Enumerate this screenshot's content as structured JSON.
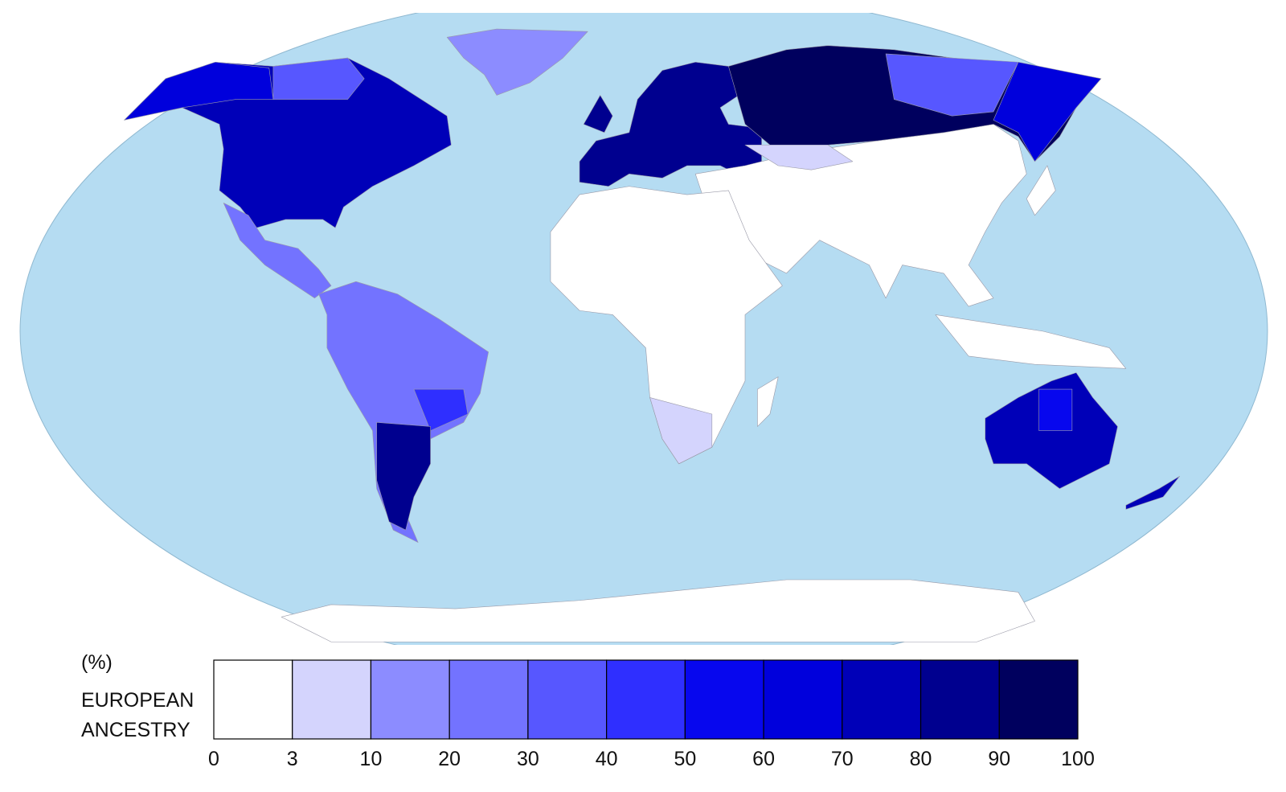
{
  "legend": {
    "unit": "(%)",
    "title": [
      "EUROPEAN",
      "ANCESTRY"
    ],
    "breaks": [
      0,
      3,
      10,
      20,
      30,
      40,
      50,
      60,
      70,
      80,
      90,
      100
    ],
    "colors": [
      "#ffffff",
      "#d4d4fd",
      "#8c8cff",
      "#7373ff",
      "#5757ff",
      "#2f2fff",
      "#0707ee",
      "#0000dc",
      "#0000b8",
      "#00008f",
      "#00005e"
    ]
  }
}
